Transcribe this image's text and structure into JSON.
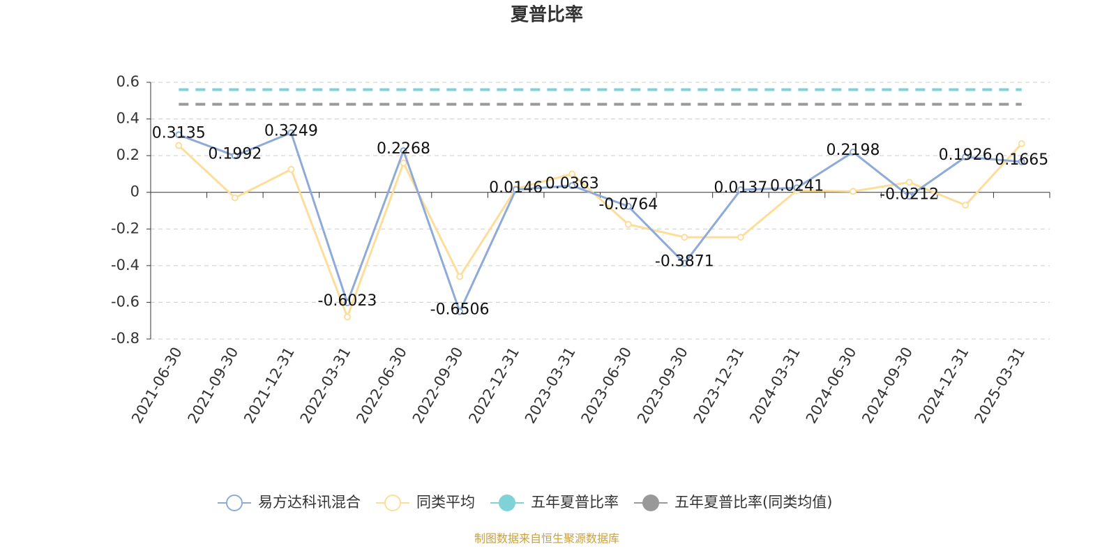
{
  "chart_data": {
    "type": "line",
    "title": "夏普比率",
    "categories": [
      "2021-06-30",
      "2021-09-30",
      "2021-12-31",
      "2022-03-31",
      "2022-06-30",
      "2022-09-30",
      "2022-12-31",
      "2023-03-31",
      "2023-06-30",
      "2023-09-30",
      "2023-12-31",
      "2024-03-31",
      "2024-06-30",
      "2024-09-30",
      "2024-12-31",
      "2025-03-31"
    ],
    "series": [
      {
        "name": "易方达科讯混合",
        "color": "#8eaad8",
        "values": [
          0.3135,
          0.1992,
          0.3249,
          -0.6023,
          0.2268,
          -0.6506,
          0.0146,
          0.0363,
          -0.0764,
          -0.3871,
          0.0137,
          0.0241,
          0.2198,
          -0.0212,
          0.1926,
          0.1665
        ],
        "labels": true
      },
      {
        "name": "同类平均",
        "color": "#fddd9a",
        "values": [
          0.255,
          -0.03,
          0.125,
          -0.68,
          0.16,
          -0.46,
          0.02,
          0.1,
          -0.175,
          -0.245,
          -0.245,
          0.01,
          0.005,
          0.055,
          -0.07,
          0.265
        ]
      }
    ],
    "reference_lines": [
      {
        "name": "五年夏普比率",
        "color": "#7fd3d8",
        "value": 0.56
      },
      {
        "name": "五年夏普比率(同类均值)",
        "color": "#999999",
        "value": 0.48
      }
    ],
    "ylim": [
      -0.8,
      0.6
    ],
    "yticks": [
      -0.8,
      -0.6,
      -0.4,
      -0.2,
      0,
      0.2,
      0.4,
      0.6
    ],
    "grid": true,
    "legend": "bottom",
    "source": "制图数据来自恒生聚源数据库"
  }
}
